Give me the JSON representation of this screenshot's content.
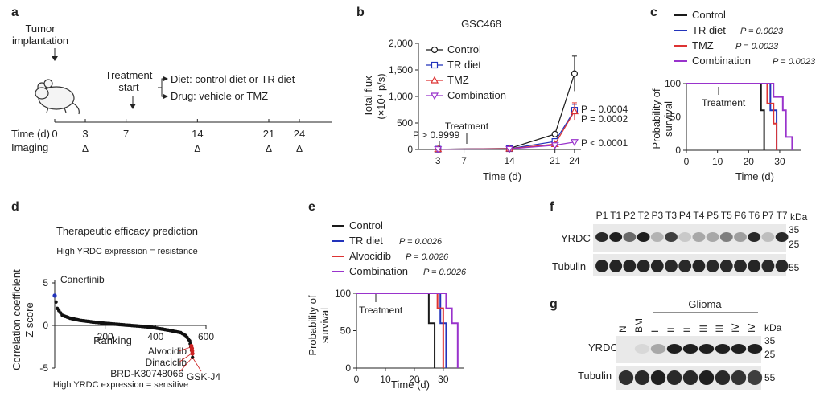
{
  "panels": {
    "a": {
      "label": "a",
      "tumor": [
        "Tumor",
        "implantation"
      ],
      "treatment": [
        "Treatment",
        "start"
      ],
      "diet": "Diet: control diet or TR diet",
      "drug": "Drug: vehicle or TMZ",
      "time_label": "Time (d)",
      "imaging_label": "Imaging",
      "days": [
        "0",
        "3",
        "7",
        "14",
        "21",
        "24"
      ],
      "imaging_days": [
        "3",
        "14",
        "21",
        "24"
      ],
      "imaging_marker": "Δ"
    },
    "b": {
      "label": "b",
      "title": "GSC468",
      "ylabel": [
        "Total flux",
        "(×10⁴ p/s)"
      ],
      "xlabel": "Time (d)",
      "legend": [
        "Control",
        "TR diet",
        "TMZ",
        "Combination"
      ],
      "p_left": "P > 0.9999",
      "treatment": "Treatment",
      "p_values": [
        "P = 0.0004",
        "P = 0.0002",
        "P < 0.0001"
      ]
    },
    "c": {
      "label": "c",
      "legend": [
        {
          "name": "Control",
          "p": ""
        },
        {
          "name": "TR diet",
          "p": "P = 0.0023"
        },
        {
          "name": "TMZ",
          "p": "P = 0.0023"
        },
        {
          "name": "Combination",
          "p": "P = 0.0023"
        }
      ],
      "ylabel": [
        "Probability of",
        "survival"
      ],
      "xlabel": "Time (d)",
      "treatment": "Treatment"
    },
    "d": {
      "label": "d",
      "title": "Therapeutic efficacy prediction",
      "top_note": "High YRDC expression = resistance",
      "ylabel": [
        "Correlation coefficient",
        "Z score"
      ],
      "xlabel": "Ranking",
      "bottom_note": "High YRDC expression = sensitive",
      "blue_label": "Canertinib",
      "red_labels": [
        "Alvocidib",
        "Dinaciclib",
        "BRD-K30748066",
        "GSK-J4"
      ]
    },
    "e": {
      "label": "e",
      "legend": [
        {
          "name": "Control",
          "p": ""
        },
        {
          "name": "TR diet",
          "p": "P = 0.0026"
        },
        {
          "name": "Alvocidib",
          "p": "P = 0.0026"
        },
        {
          "name": "Combination",
          "p": "P = 0.0026"
        }
      ],
      "ylabel": [
        "Probability of",
        "survival"
      ],
      "xlabel": "Time (d)",
      "treatment": "Treatment"
    },
    "f": {
      "label": "f",
      "lanes": [
        "P1",
        "T1",
        "P2",
        "T2",
        "P3",
        "T3",
        "P4",
        "T4",
        "P5",
        "T5",
        "P6",
        "T6",
        "P7",
        "T7"
      ],
      "kda": "kDa",
      "rows": [
        "YRDC",
        "Tubulin"
      ],
      "mw": [
        "35",
        "25",
        "55"
      ]
    },
    "g": {
      "label": "g",
      "group": "Glioma",
      "lanes": [
        "N",
        "BM",
        "I",
        "II",
        "II",
        "III",
        "III",
        "IV",
        "IV"
      ],
      "kda": "kDa",
      "rows": [
        "YRDC",
        "Tubulin"
      ],
      "mw": [
        "35",
        "25",
        "55"
      ]
    }
  },
  "colors": {
    "control": "#1a1a1a",
    "tr_diet": "#2233bb",
    "tmz": "#dd3333",
    "combination": "#9933cc",
    "note_blue": "#2233bb",
    "note_red": "#cc2222"
  },
  "chart_data": [
    {
      "panel": "b",
      "type": "line",
      "title": "GSC468",
      "xlabel": "Time (d)",
      "ylabel": "Total flux (×10⁴ p/s)",
      "x": [
        3,
        14,
        21,
        24
      ],
      "xticks": [
        3,
        7,
        14,
        21,
        24
      ],
      "ylim": [
        0,
        2000
      ],
      "yticks": [
        0,
        500,
        1000,
        1500,
        2000
      ],
      "ytick_labels": [
        "0",
        "500",
        "1,000",
        "1,500",
        "2,000"
      ],
      "series": [
        {
          "name": "Control",
          "values": [
            5,
            20,
            290,
            1430
          ],
          "err": [
            0,
            0,
            30,
            330
          ]
        },
        {
          "name": "TR diet",
          "values": [
            5,
            15,
            150,
            740
          ],
          "err": [
            0,
            0,
            20,
            110
          ]
        },
        {
          "name": "TMZ",
          "values": [
            5,
            15,
            100,
            720
          ],
          "err": [
            0,
            0,
            15,
            160
          ]
        },
        {
          "name": "Combination",
          "values": [
            5,
            10,
            80,
            140
          ],
          "err": [
            0,
            0,
            10,
            20
          ]
        }
      ]
    },
    {
      "panel": "c",
      "type": "line",
      "xlabel": "Time (d)",
      "ylabel": "Probability of survival",
      "xlim": [
        0,
        37
      ],
      "xticks": [
        0,
        10,
        20,
        30
      ],
      "ylim": [
        0,
        100
      ],
      "yticks": [
        0,
        50,
        100
      ],
      "series": [
        {
          "name": "Control",
          "steps": [
            [
              0,
              100
            ],
            [
              24,
              100
            ],
            [
              24,
              60
            ],
            [
              25,
              60
            ],
            [
              25,
              0
            ]
          ]
        },
        {
          "name": "TR diet",
          "steps": [
            [
              0,
              100
            ],
            [
              27,
              100
            ],
            [
              27,
              60
            ],
            [
              29,
              60
            ],
            [
              29,
              0
            ]
          ]
        },
        {
          "name": "TMZ",
          "steps": [
            [
              0,
              100
            ],
            [
              26,
              100
            ],
            [
              26,
              70
            ],
            [
              28,
              70
            ],
            [
              28,
              40
            ],
            [
              29,
              40
            ],
            [
              29,
              0
            ]
          ]
        },
        {
          "name": "Combination",
          "steps": [
            [
              0,
              100
            ],
            [
              28,
              100
            ],
            [
              28,
              80
            ],
            [
              31,
              80
            ],
            [
              31,
              60
            ],
            [
              32,
              60
            ],
            [
              32,
              20
            ],
            [
              34,
              20
            ],
            [
              34,
              0
            ]
          ]
        }
      ]
    },
    {
      "panel": "d",
      "type": "scatter",
      "title": "Therapeutic efficacy prediction",
      "xlabel": "Ranking",
      "ylabel": "Correlation coefficient Z score",
      "xlim": [
        0,
        600
      ],
      "xticks": [
        200,
        400,
        600
      ],
      "ylim": [
        -5,
        5
      ],
      "yticks": [
        -5,
        0,
        5
      ],
      "curve": [
        [
          0,
          3.5
        ],
        [
          10,
          2.0
        ],
        [
          30,
          1.2
        ],
        [
          60,
          0.85
        ],
        [
          100,
          0.6
        ],
        [
          150,
          0.4
        ],
        [
          200,
          0.25
        ],
        [
          250,
          0.12
        ],
        [
          300,
          0.0
        ],
        [
          350,
          -0.12
        ],
        [
          400,
          -0.3
        ],
        [
          450,
          -0.55
        ],
        [
          500,
          -0.85
        ],
        [
          520,
          -1.2
        ],
        [
          535,
          -1.8
        ],
        [
          540,
          -2.5
        ],
        [
          545,
          -3.3
        ],
        [
          548,
          -4.2
        ]
      ],
      "highlights": [
        {
          "name": "Canertinib",
          "x": 0,
          "y": 3.5
        },
        {
          "name": "Alvocidib",
          "x": 546,
          "y": -3.3
        },
        {
          "name": "Dinaciclib",
          "x": 545,
          "y": -3.0
        },
        {
          "name": "BRD-K30748066",
          "x": 544,
          "y": -2.7
        },
        {
          "name": "GSK-J4",
          "x": 542,
          "y": -2.4
        }
      ]
    },
    {
      "panel": "e",
      "type": "line",
      "xlabel": "Time (d)",
      "ylabel": "Probability of survival",
      "xlim": [
        0,
        37
      ],
      "xticks": [
        0,
        10,
        20,
        30
      ],
      "ylim": [
        0,
        100
      ],
      "yticks": [
        0,
        50,
        100
      ],
      "series": [
        {
          "name": "Control",
          "steps": [
            [
              0,
              100
            ],
            [
              25,
              100
            ],
            [
              25,
              60
            ],
            [
              27,
              60
            ],
            [
              27,
              0
            ]
          ]
        },
        {
          "name": "TR diet",
          "steps": [
            [
              0,
              100
            ],
            [
              29,
              100
            ],
            [
              29,
              60
            ],
            [
              31,
              60
            ],
            [
              31,
              0
            ]
          ]
        },
        {
          "name": "Alvocidib",
          "steps": [
            [
              0,
              100
            ],
            [
              28,
              100
            ],
            [
              28,
              80
            ],
            [
              30,
              80
            ],
            [
              30,
              0
            ]
          ]
        },
        {
          "name": "Combination",
          "steps": [
            [
              0,
              100
            ],
            [
              31,
              100
            ],
            [
              31,
              80
            ],
            [
              33,
              80
            ],
            [
              33,
              60
            ],
            [
              35,
              60
            ],
            [
              35,
              0
            ]
          ]
        }
      ]
    }
  ]
}
